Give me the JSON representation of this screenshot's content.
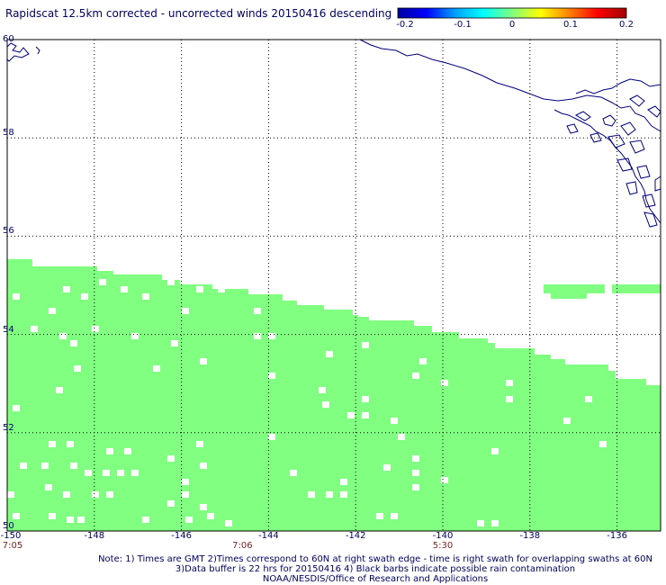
{
  "title": "Rapidscat 12.5km corrected - uncorrected winds 20150416 descending",
  "colorbar": {
    "ticks": [
      "-0.2",
      "-0.1",
      "0",
      "0.1",
      "0.2"
    ],
    "colors": [
      "#0000a0",
      "#0000ff",
      "#00a0ff",
      "#00ffff",
      "#80ff80",
      "#ffff00",
      "#ff8000",
      "#ff0000",
      "#a00000"
    ]
  },
  "map": {
    "lon_ticks": [
      "-150",
      "-148",
      "-146",
      "-144",
      "-142",
      "-140",
      "-138",
      "-136"
    ],
    "lat_ticks": [
      "50",
      "52",
      "54",
      "56",
      "58",
      "60"
    ],
    "lon_range": [
      -150,
      -135
    ],
    "lat_range": [
      50,
      60
    ],
    "grid_lons": [
      -148,
      -146,
      -144,
      -142,
      -140,
      -138,
      -136
    ],
    "grid_lats": [
      52,
      54,
      56,
      58
    ],
    "swath_color": "#80ff80",
    "coast_color": "#000080"
  },
  "time_labels": [
    {
      "text": "7:05",
      "lon": -150
    },
    {
      "text": "7:06",
      "lon": -144.6
    },
    {
      "text": "5:30",
      "lon": -140
    }
  ],
  "notes": [
    "Note: 1) Times are GMT 2)Times correspond to 60N at right swath edge - time is right swath for overlapping swaths at 60N",
    "3)Data buffer is 22 hrs for 20150416 4) Black barbs indicate possible rain contamination",
    "NOAA/NESDIS/Office of Research and Applications"
  ]
}
